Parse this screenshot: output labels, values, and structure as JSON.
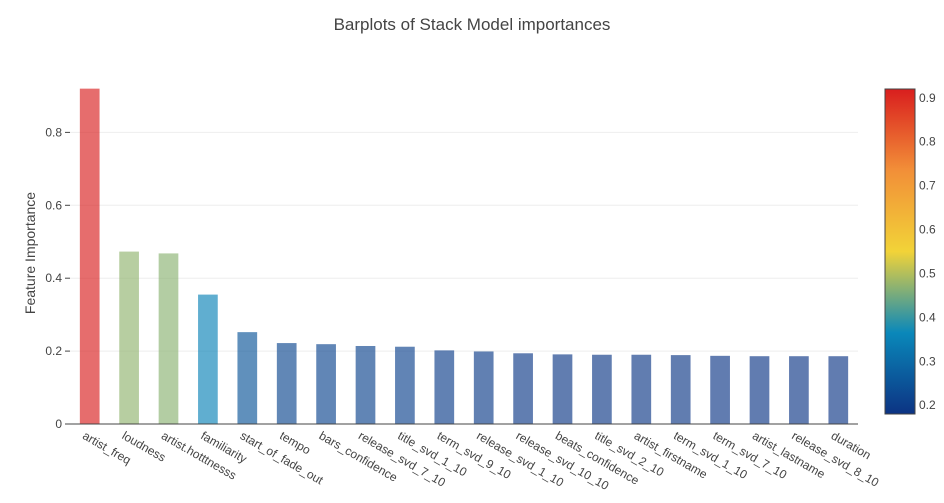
{
  "chart_data": {
    "type": "bar",
    "title": "Barplots of Stack Model importances",
    "xlabel": "",
    "ylabel": "Feature Importance",
    "ylim": [
      0,
      0.93
    ],
    "grid": true,
    "yticks": [
      0,
      0.2,
      0.4,
      0.6,
      0.8
    ],
    "ytick_labels": [
      "0",
      "0.2",
      "0.4",
      "0.6",
      "0.8"
    ],
    "colorscale": "Portland",
    "colorbar": {
      "range": [
        0.18,
        0.92
      ],
      "ticks": [
        0.2,
        0.3,
        0.4,
        0.5,
        0.6,
        0.7,
        0.8,
        0.9
      ],
      "tick_labels": [
        "0.2",
        "0.3",
        "0.4",
        "0.5",
        "0.6",
        "0.7",
        "0.8",
        "0.9"
      ]
    },
    "categories": [
      "artist_freq",
      "loudness",
      "artist.hotttnesss",
      "familiarity",
      "start_of_fade_out",
      "tempo",
      "bars_confidence",
      "release_svd_7_10",
      "title_svd_1_10",
      "term_svd_9_10",
      "release_svd_1_10",
      "release_svd_10_10",
      "beats_confidence",
      "title_svd_2_10",
      "artist_firstname",
      "term_svd_1_10",
      "term_svd_7_10",
      "artist_lastname",
      "release_svd_8_10",
      "duration"
    ],
    "values": [
      0.92,
      0.473,
      0.468,
      0.355,
      0.252,
      0.222,
      0.219,
      0.214,
      0.212,
      0.202,
      0.199,
      0.194,
      0.191,
      0.19,
      0.19,
      0.189,
      0.187,
      0.186,
      0.186,
      0.186
    ]
  }
}
